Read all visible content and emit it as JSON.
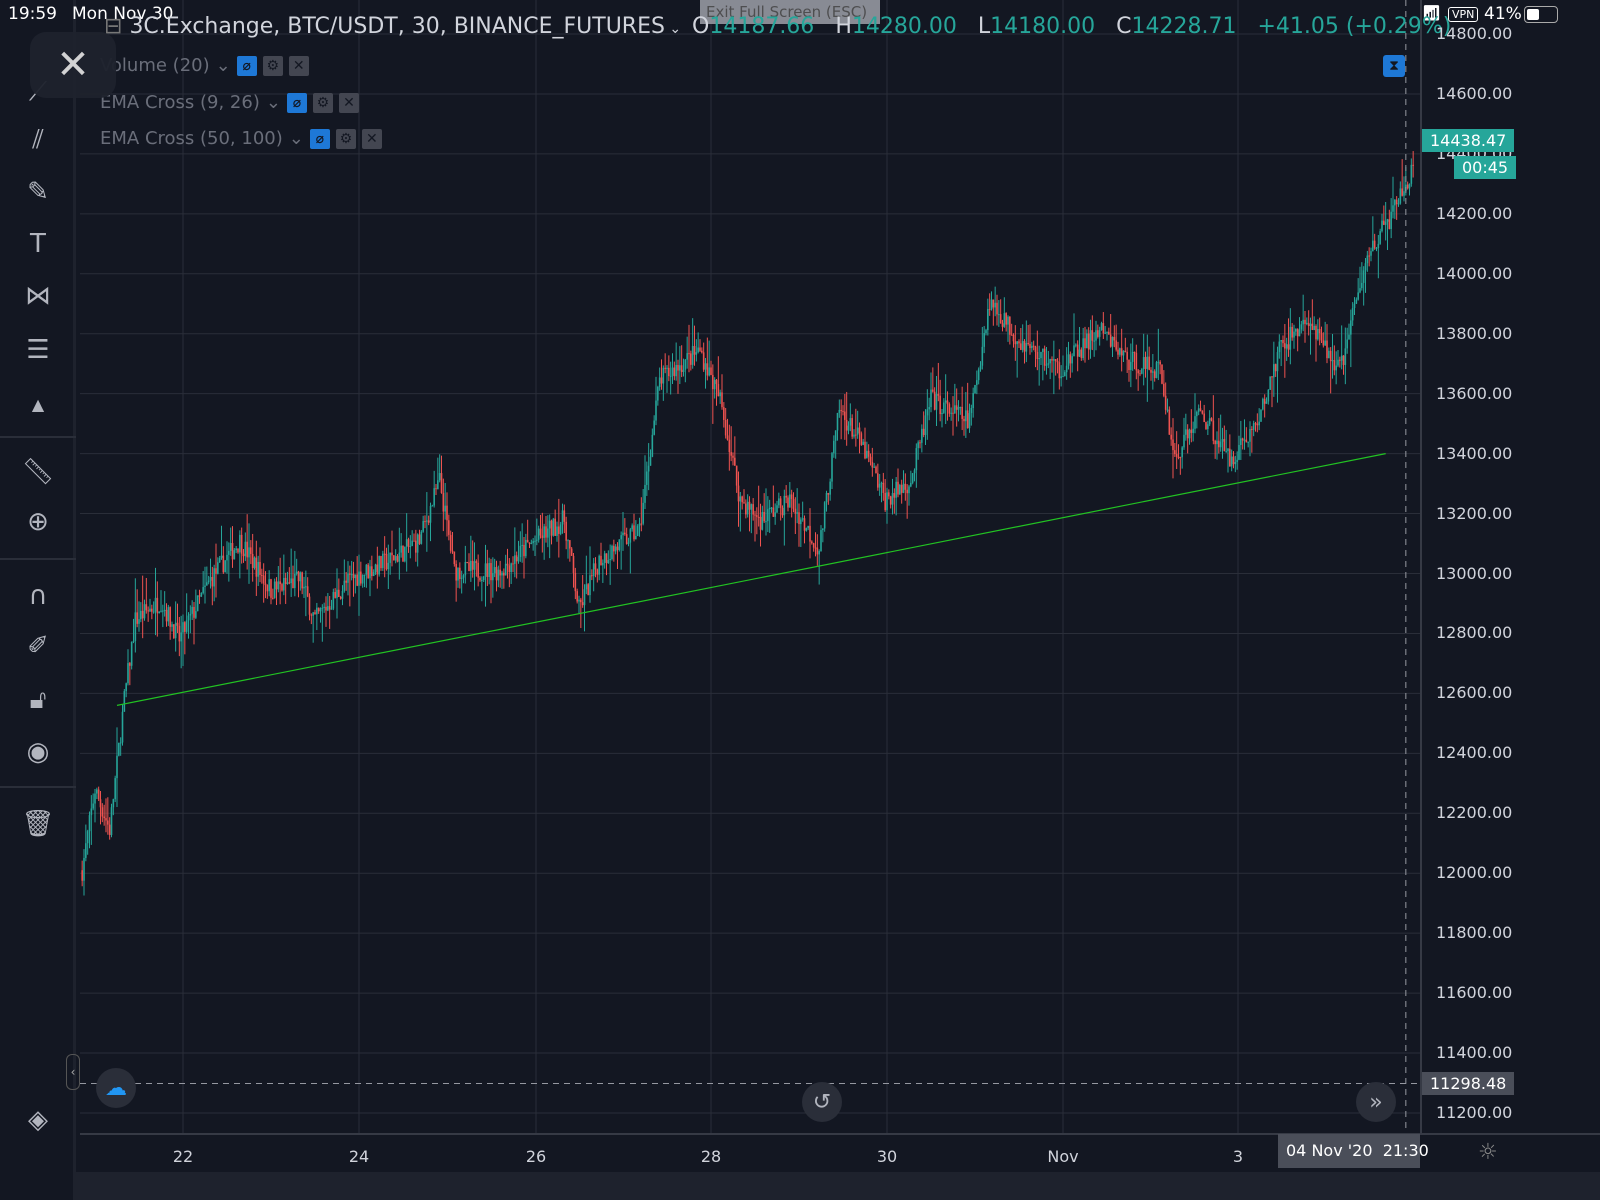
{
  "status_bar": {
    "time": "19:59",
    "date": "Mon Nov 30",
    "vpn": "VPN",
    "battery": "41%"
  },
  "exit_fullscreen": "Exit Full Screen (ESC)",
  "legend": {
    "title": "3C.Exchange, BTC/USDT, 30, BINANCE_FUTURES",
    "ohlc": {
      "o_label": "O",
      "o": "14187.66",
      "h_label": "H",
      "h": "14280.00",
      "l_label": "L",
      "l": "14180.00",
      "c_label": "C",
      "c": "14228.71",
      "change": "+41.05 (+0.29%)"
    }
  },
  "indicators": [
    {
      "label": "Volume (20)"
    },
    {
      "label": "EMA Cross (9, 26)"
    },
    {
      "label": "EMA Cross (50, 100)"
    }
  ],
  "colors": {
    "up": "#26a69a",
    "down": "#ef5350",
    "background": "#131722",
    "grid": "#2a2e39",
    "trendline": "#22c322",
    "accent": "#1e78d6"
  },
  "price_axis": {
    "ticks": [
      "14800.00",
      "14600.00",
      "14400.00",
      "14200.00",
      "14000.00",
      "13800.00",
      "13600.00",
      "13400.00",
      "13200.00",
      "13000.00",
      "12800.00",
      "12600.00",
      "12400.00",
      "12200.00",
      "12000.00",
      "11800.00",
      "11600.00",
      "11400.00",
      "11200.00"
    ],
    "last_price": "14438.47",
    "countdown": "00:45",
    "crosshair_price": "11298.48"
  },
  "time_axis": {
    "ticks": [
      "22",
      "24",
      "26",
      "28",
      "30",
      "Nov",
      "3"
    ],
    "crosshair_time": "04 Nov '20  21:30"
  },
  "chart_data": {
    "type": "candlestick",
    "interval": "30",
    "ylim": [
      11200,
      14800
    ],
    "price_path": [
      [
        "2020-10-20T20:30",
        12010
      ],
      [
        "2020-10-21T00:00",
        12280
      ],
      [
        "2020-10-21T04:00",
        12145
      ],
      [
        "2020-10-21T08:00",
        12580
      ],
      [
        "2020-10-21T11:00",
        12845
      ],
      [
        "2020-10-21T18:00",
        12910
      ],
      [
        "2020-10-21T23:00",
        12780
      ],
      [
        "2020-10-22T07:30",
        12980
      ],
      [
        "2020-10-22T15:30",
        13110
      ],
      [
        "2020-10-23T00:00",
        12945
      ],
      [
        "2020-10-23T08:00",
        12980
      ],
      [
        "2020-10-23T12:00",
        12845
      ],
      [
        "2020-10-23T21:30",
        12980
      ],
      [
        "2020-10-24T08:30",
        13045
      ],
      [
        "2020-10-24T16:30",
        13110
      ],
      [
        "2020-10-24T22:00",
        13310
      ],
      [
        "2020-10-25T02:00",
        13010
      ],
      [
        "2020-10-25T14:30",
        13010
      ],
      [
        "2020-10-25T22:30",
        13095
      ],
      [
        "2020-10-26T08:00",
        13180
      ],
      [
        "2020-10-26T12:00",
        12880
      ],
      [
        "2020-10-26T17:30",
        13045
      ],
      [
        "2020-10-27T04:30",
        13145
      ],
      [
        "2020-10-27T10:00",
        13645
      ],
      [
        "2020-10-27T21:00",
        13745
      ],
      [
        "2020-10-28T02:30",
        13580
      ],
      [
        "2020-10-28T08:00",
        13245
      ],
      [
        "2020-10-28T13:30",
        13180
      ],
      [
        "2020-10-28T21:30",
        13245
      ],
      [
        "2020-10-29T05:30",
        13080
      ],
      [
        "2020-10-29T11:00",
        13545
      ],
      [
        "2020-10-29T16:30",
        13445
      ],
      [
        "2020-10-29T23:30",
        13245
      ],
      [
        "2020-10-30T06:30",
        13310
      ],
      [
        "2020-10-30T12:00",
        13580
      ],
      [
        "2020-10-30T22:30",
        13510
      ],
      [
        "2020-10-31T04:00",
        13910
      ],
      [
        "2020-10-31T12:00",
        13780
      ],
      [
        "2020-10-31T23:00",
        13680
      ],
      [
        "2020-11-01T10:00",
        13810
      ],
      [
        "2020-11-01T18:00",
        13710
      ],
      [
        "2020-11-02T02:30",
        13680
      ],
      [
        "2020-11-02T06:30",
        13380
      ],
      [
        "2020-11-02T13:30",
        13545
      ],
      [
        "2020-11-02T21:30",
        13380
      ],
      [
        "2020-11-03T05:30",
        13510
      ],
      [
        "2020-11-03T11:00",
        13745
      ],
      [
        "2020-11-03T18:00",
        13845
      ],
      [
        "2020-11-04T03:30",
        13680
      ],
      [
        "2020-11-04T11:30",
        14080
      ],
      [
        "2020-11-04T17:00",
        14180
      ],
      [
        "2020-11-04T23:30",
        14345
      ]
    ],
    "trendline": [
      [
        "2020-10-21T06:00",
        12560
      ],
      [
        "2020-11-04T16:00",
        13400
      ]
    ],
    "crosshair": [
      "2020-11-04T21:30",
      11298.48
    ]
  }
}
